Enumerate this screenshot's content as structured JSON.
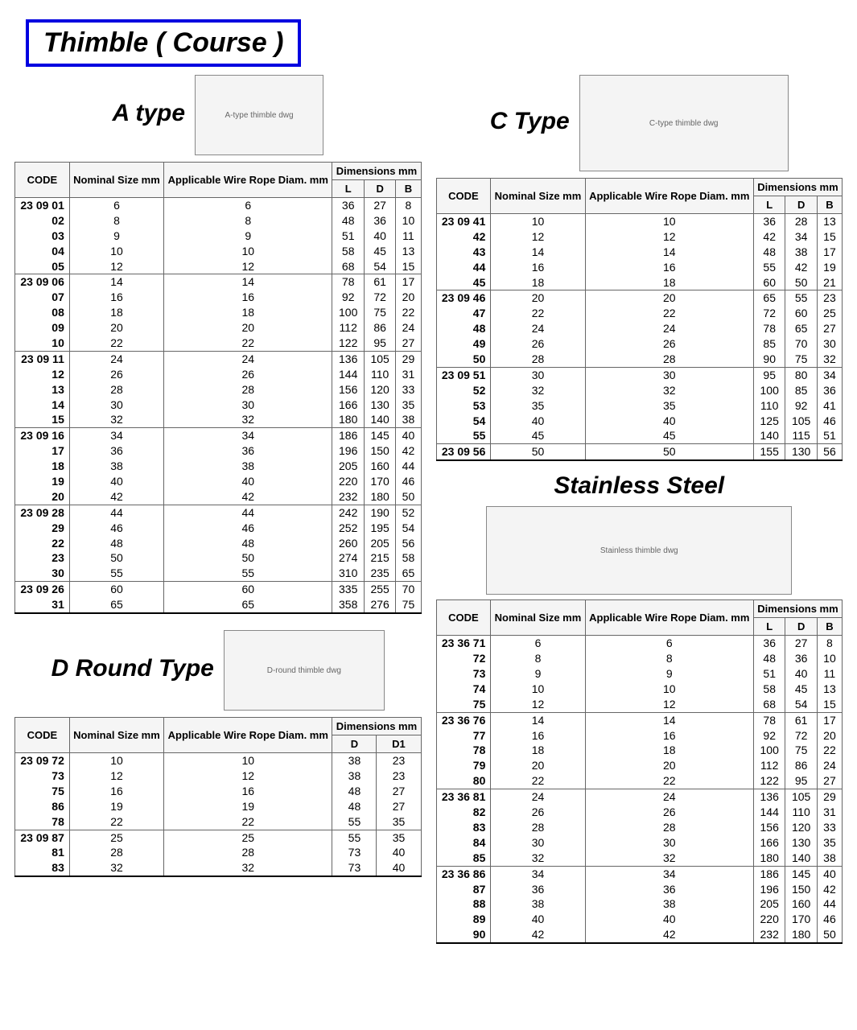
{
  "page_title": "Thimble ( Course )",
  "headers": {
    "code": "CODE",
    "nominal": "Nominal Size mm",
    "wire": "Applicable Wire Rope Diam. mm",
    "dims": "Dimensions mm",
    "L": "L",
    "D": "D",
    "B": "B",
    "D1": "D1"
  },
  "sections": {
    "a": {
      "title": "A type",
      "img_label": "A-type thimble dwg",
      "dim_cols": [
        "L",
        "D",
        "B"
      ],
      "rows": [
        {
          "code": "23 09 01",
          "n": "6",
          "w": "6",
          "d": [
            "36",
            "27",
            "8"
          ]
        },
        {
          "code": "02",
          "n": "8",
          "w": "8",
          "d": [
            "48",
            "36",
            "10"
          ]
        },
        {
          "code": "03",
          "n": "9",
          "w": "9",
          "d": [
            "51",
            "40",
            "11"
          ]
        },
        {
          "code": "04",
          "n": "10",
          "w": "10",
          "d": [
            "58",
            "45",
            "13"
          ]
        },
        {
          "code": "05",
          "n": "12",
          "w": "12",
          "d": [
            "68",
            "54",
            "15"
          ],
          "end": true
        },
        {
          "code": "23 09 06",
          "n": "14",
          "w": "14",
          "d": [
            "78",
            "61",
            "17"
          ]
        },
        {
          "code": "07",
          "n": "16",
          "w": "16",
          "d": [
            "92",
            "72",
            "20"
          ]
        },
        {
          "code": "08",
          "n": "18",
          "w": "18",
          "d": [
            "100",
            "75",
            "22"
          ]
        },
        {
          "code": "09",
          "n": "20",
          "w": "20",
          "d": [
            "112",
            "86",
            "24"
          ]
        },
        {
          "code": "10",
          "n": "22",
          "w": "22",
          "d": [
            "122",
            "95",
            "27"
          ],
          "end": true
        },
        {
          "code": "23 09 11",
          "n": "24",
          "w": "24",
          "d": [
            "136",
            "105",
            "29"
          ]
        },
        {
          "code": "12",
          "n": "26",
          "w": "26",
          "d": [
            "144",
            "110",
            "31"
          ]
        },
        {
          "code": "13",
          "n": "28",
          "w": "28",
          "d": [
            "156",
            "120",
            "33"
          ]
        },
        {
          "code": "14",
          "n": "30",
          "w": "30",
          "d": [
            "166",
            "130",
            "35"
          ]
        },
        {
          "code": "15",
          "n": "32",
          "w": "32",
          "d": [
            "180",
            "140",
            "38"
          ],
          "end": true
        },
        {
          "code": "23 09 16",
          "n": "34",
          "w": "34",
          "d": [
            "186",
            "145",
            "40"
          ]
        },
        {
          "code": "17",
          "n": "36",
          "w": "36",
          "d": [
            "196",
            "150",
            "42"
          ]
        },
        {
          "code": "18",
          "n": "38",
          "w": "38",
          "d": [
            "205",
            "160",
            "44"
          ]
        },
        {
          "code": "19",
          "n": "40",
          "w": "40",
          "d": [
            "220",
            "170",
            "46"
          ]
        },
        {
          "code": "20",
          "n": "42",
          "w": "42",
          "d": [
            "232",
            "180",
            "50"
          ],
          "end": true
        },
        {
          "code": "23 09 28",
          "n": "44",
          "w": "44",
          "d": [
            "242",
            "190",
            "52"
          ]
        },
        {
          "code": "29",
          "n": "46",
          "w": "46",
          "d": [
            "252",
            "195",
            "54"
          ]
        },
        {
          "code": "22",
          "n": "48",
          "w": "48",
          "d": [
            "260",
            "205",
            "56"
          ]
        },
        {
          "code": "23",
          "n": "50",
          "w": "50",
          "d": [
            "274",
            "215",
            "58"
          ]
        },
        {
          "code": "30",
          "n": "55",
          "w": "55",
          "d": [
            "310",
            "235",
            "65"
          ],
          "end": true
        },
        {
          "code": "23 09 26",
          "n": "60",
          "w": "60",
          "d": [
            "335",
            "255",
            "70"
          ]
        },
        {
          "code": "31",
          "n": "65",
          "w": "65",
          "d": [
            "358",
            "276",
            "75"
          ],
          "bottom": true
        }
      ]
    },
    "c": {
      "title": "C Type",
      "img_label": "C-type thimble dwg",
      "dim_cols": [
        "L",
        "D",
        "B"
      ],
      "rows": [
        {
          "code": "23 09 41",
          "n": "10",
          "w": "10",
          "d": [
            "36",
            "28",
            "13"
          ]
        },
        {
          "code": "42",
          "n": "12",
          "w": "12",
          "d": [
            "42",
            "34",
            "15"
          ]
        },
        {
          "code": "43",
          "n": "14",
          "w": "14",
          "d": [
            "48",
            "38",
            "17"
          ]
        },
        {
          "code": "44",
          "n": "16",
          "w": "16",
          "d": [
            "55",
            "42",
            "19"
          ]
        },
        {
          "code": "45",
          "n": "18",
          "w": "18",
          "d": [
            "60",
            "50",
            "21"
          ],
          "end": true
        },
        {
          "code": "23 09 46",
          "n": "20",
          "w": "20",
          "d": [
            "65",
            "55",
            "23"
          ]
        },
        {
          "code": "47",
          "n": "22",
          "w": "22",
          "d": [
            "72",
            "60",
            "25"
          ]
        },
        {
          "code": "48",
          "n": "24",
          "w": "24",
          "d": [
            "78",
            "65",
            "27"
          ]
        },
        {
          "code": "49",
          "n": "26",
          "w": "26",
          "d": [
            "85",
            "70",
            "30"
          ]
        },
        {
          "code": "50",
          "n": "28",
          "w": "28",
          "d": [
            "90",
            "75",
            "32"
          ],
          "end": true
        },
        {
          "code": "23 09 51",
          "n": "30",
          "w": "30",
          "d": [
            "95",
            "80",
            "34"
          ]
        },
        {
          "code": "52",
          "n": "32",
          "w": "32",
          "d": [
            "100",
            "85",
            "36"
          ]
        },
        {
          "code": "53",
          "n": "35",
          "w": "35",
          "d": [
            "110",
            "92",
            "41"
          ]
        },
        {
          "code": "54",
          "n": "40",
          "w": "40",
          "d": [
            "125",
            "105",
            "46"
          ]
        },
        {
          "code": "55",
          "n": "45",
          "w": "45",
          "d": [
            "140",
            "115",
            "51"
          ],
          "end": true
        },
        {
          "code": "23 09 56",
          "n": "50",
          "w": "50",
          "d": [
            "155",
            "130",
            "56"
          ],
          "bottom": true
        }
      ]
    },
    "ss": {
      "title": "Stainless Steel",
      "img_label": "Stainless thimble dwg",
      "dim_cols": [
        "L",
        "D",
        "B"
      ],
      "rows": [
        {
          "code": "23 36 71",
          "n": "6",
          "w": "6",
          "d": [
            "36",
            "27",
            "8"
          ]
        },
        {
          "code": "72",
          "n": "8",
          "w": "8",
          "d": [
            "48",
            "36",
            "10"
          ]
        },
        {
          "code": "73",
          "n": "9",
          "w": "9",
          "d": [
            "51",
            "40",
            "11"
          ]
        },
        {
          "code": "74",
          "n": "10",
          "w": "10",
          "d": [
            "58",
            "45",
            "13"
          ]
        },
        {
          "code": "75",
          "n": "12",
          "w": "12",
          "d": [
            "68",
            "54",
            "15"
          ],
          "end": true
        },
        {
          "code": "23 36 76",
          "n": "14",
          "w": "14",
          "d": [
            "78",
            "61",
            "17"
          ]
        },
        {
          "code": "77",
          "n": "16",
          "w": "16",
          "d": [
            "92",
            "72",
            "20"
          ]
        },
        {
          "code": "78",
          "n": "18",
          "w": "18",
          "d": [
            "100",
            "75",
            "22"
          ]
        },
        {
          "code": "79",
          "n": "20",
          "w": "20",
          "d": [
            "112",
            "86",
            "24"
          ]
        },
        {
          "code": "80",
          "n": "22",
          "w": "22",
          "d": [
            "122",
            "95",
            "27"
          ],
          "end": true
        },
        {
          "code": "23 36 81",
          "n": "24",
          "w": "24",
          "d": [
            "136",
            "105",
            "29"
          ]
        },
        {
          "code": "82",
          "n": "26",
          "w": "26",
          "d": [
            "144",
            "110",
            "31"
          ]
        },
        {
          "code": "83",
          "n": "28",
          "w": "28",
          "d": [
            "156",
            "120",
            "33"
          ]
        },
        {
          "code": "84",
          "n": "30",
          "w": "30",
          "d": [
            "166",
            "130",
            "35"
          ]
        },
        {
          "code": "85",
          "n": "32",
          "w": "32",
          "d": [
            "180",
            "140",
            "38"
          ],
          "end": true
        },
        {
          "code": "23 36 86",
          "n": "34",
          "w": "34",
          "d": [
            "186",
            "145",
            "40"
          ]
        },
        {
          "code": "87",
          "n": "36",
          "w": "36",
          "d": [
            "196",
            "150",
            "42"
          ]
        },
        {
          "code": "88",
          "n": "38",
          "w": "38",
          "d": [
            "205",
            "160",
            "44"
          ]
        },
        {
          "code": "89",
          "n": "40",
          "w": "40",
          "d": [
            "220",
            "170",
            "46"
          ]
        },
        {
          "code": "90",
          "n": "42",
          "w": "42",
          "d": [
            "232",
            "180",
            "50"
          ],
          "bottom": true
        }
      ]
    },
    "d": {
      "title": "D Round  Type",
      "img_label": "D-round thimble dwg",
      "dim_cols": [
        "D",
        "D1"
      ],
      "rows": [
        {
          "code": "23 09 72",
          "n": "10",
          "w": "10",
          "d": [
            "38",
            "23"
          ]
        },
        {
          "code": "73",
          "n": "12",
          "w": "12",
          "d": [
            "38",
            "23"
          ]
        },
        {
          "code": "75",
          "n": "16",
          "w": "16",
          "d": [
            "48",
            "27"
          ]
        },
        {
          "code": "86",
          "n": "19",
          "w": "19",
          "d": [
            "48",
            "27"
          ]
        },
        {
          "code": "78",
          "n": "22",
          "w": "22",
          "d": [
            "55",
            "35"
          ],
          "end": true
        },
        {
          "code": "23 09 87",
          "n": "25",
          "w": "25",
          "d": [
            "55",
            "35"
          ]
        },
        {
          "code": "81",
          "n": "28",
          "w": "28",
          "d": [
            "73",
            "40"
          ]
        },
        {
          "code": "83",
          "n": "32",
          "w": "32",
          "d": [
            "73",
            "40"
          ],
          "bottom": true
        }
      ]
    }
  }
}
